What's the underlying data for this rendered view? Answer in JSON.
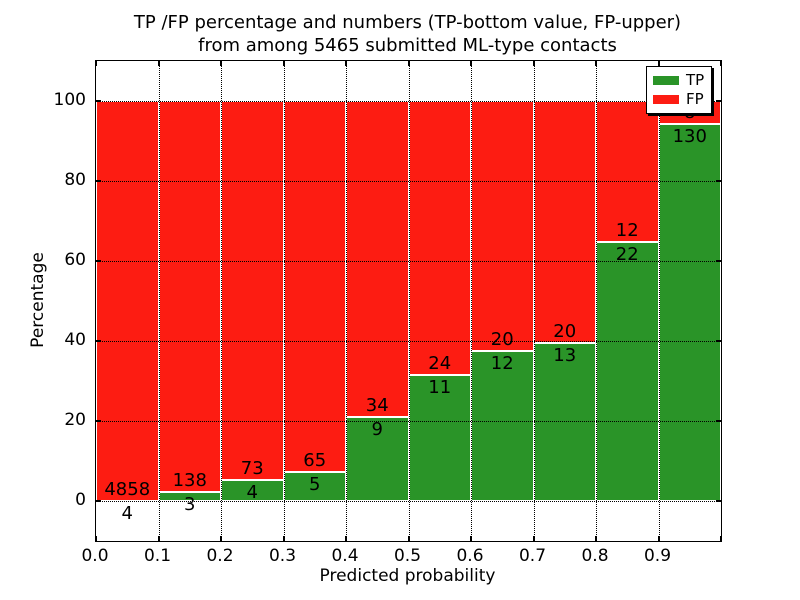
{
  "title": {
    "line1": "TP /FP percentage and numbers (TP-bottom value, FP-upper)",
    "line2": "from among 5465 submitted ML-type contacts"
  },
  "axes": {
    "xlabel": "Predicted probability",
    "ylabel": "Percentage",
    "x_tick_labels": [
      "0.0",
      "0.1",
      "0.2",
      "0.3",
      "0.4",
      "0.5",
      "0.6",
      "0.7",
      "0.8",
      "0.9"
    ],
    "y_tick_labels": [
      "0",
      "20",
      "40",
      "60",
      "80",
      "100"
    ],
    "y_tick_values": [
      0,
      20,
      40,
      60,
      80,
      100
    ]
  },
  "legend": {
    "items": [
      {
        "label": "TP",
        "color": "#2a9428"
      },
      {
        "label": "FP",
        "color": "#fd1c12"
      }
    ]
  },
  "colors": {
    "tp_green": "#2a9428",
    "fp_red": "#fd1c12",
    "grid": "#000000"
  },
  "chart_data": {
    "type": "bar",
    "stacked": true,
    "normalized_to_percent": 100,
    "title": "TP /FP percentage and numbers (TP-bottom value, FP-upper) from among 5465 submitted ML-type contacts",
    "xlabel": "Predicted probability",
    "ylabel": "Percentage",
    "xlim": [
      0.0,
      1.0
    ],
    "ylim": [
      -10,
      110
    ],
    "grid": "dotted",
    "legend_position": "upper right",
    "bin_edges": [
      0.0,
      0.1,
      0.2,
      0.3,
      0.4,
      0.5,
      0.6,
      0.7,
      0.8,
      0.9,
      1.0
    ],
    "series": [
      {
        "name": "TP",
        "color": "#2a9428",
        "counts": [
          4,
          3,
          4,
          5,
          9,
          11,
          12,
          13,
          22,
          130
        ]
      },
      {
        "name": "FP",
        "color": "#fd1c12",
        "counts": [
          4858,
          138,
          73,
          65,
          34,
          24,
          20,
          20,
          12,
          8
        ]
      }
    ],
    "tp_percent_by_bin": [
      0.08,
      2.13,
      5.19,
      7.14,
      20.93,
      31.43,
      37.5,
      39.39,
      64.71,
      94.2
    ],
    "total_contacts": 5465,
    "note": "each bar stacks TP (bottom, green) and FP (upper, red) as percent of bin total; labels show raw counts"
  }
}
